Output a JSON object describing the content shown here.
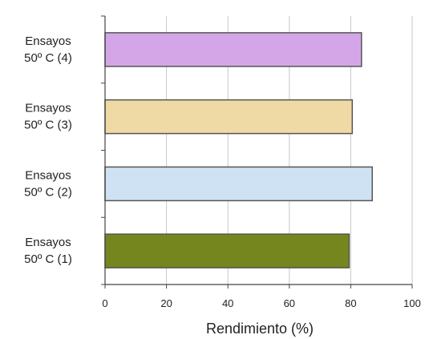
{
  "chart_data": {
    "type": "bar",
    "orientation": "horizontal",
    "categories": [
      [
        "Ensayos",
        "50º C (4)"
      ],
      [
        "Ensayos",
        "50º C (3)"
      ],
      [
        "Ensayos",
        "50º C (2)"
      ],
      [
        "Ensayos",
        "50º C (1)"
      ]
    ],
    "values": [
      83.5,
      80.5,
      87,
      79.5
    ],
    "colors": [
      "#d4a6e8",
      "#efd9a4",
      "#cfe2f3",
      "#76861f"
    ],
    "xlabel": "Rendimiento (%)",
    "ylabel": "",
    "xlim": [
      0,
      100
    ],
    "xticks": [
      "0",
      "20",
      "40",
      "60",
      "80",
      "100"
    ],
    "grid": "vertical",
    "legend": "none"
  }
}
